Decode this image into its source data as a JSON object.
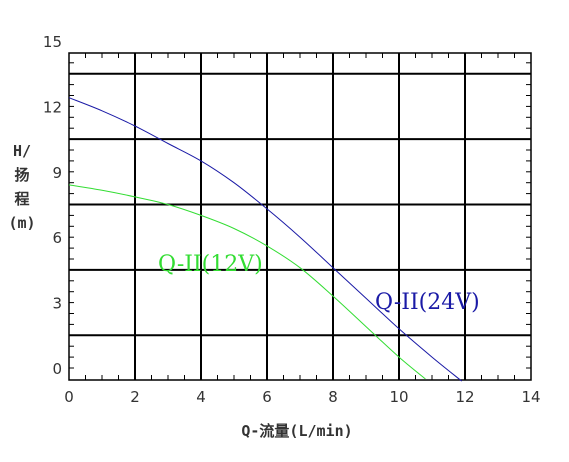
{
  "chart_data": {
    "type": "line",
    "title": "",
    "xlabel": "Q-流量(L/min)",
    "ylabel_lines": [
      "H/",
      "扬",
      "程",
      "(m)"
    ],
    "xlim": [
      0,
      14
    ],
    "ylim": [
      -0.5,
      15
    ],
    "x_ticks": [
      0,
      2,
      4,
      6,
      8,
      10,
      12,
      14
    ],
    "y_ticks": [
      0,
      3,
      6,
      9,
      12,
      15
    ],
    "grid": true,
    "series": [
      {
        "name": "Q-II(24V)",
        "color": "#1a1aa6",
        "x": [
          0,
          1,
          2,
          3,
          4,
          5,
          6,
          7,
          8,
          9,
          10,
          11,
          11.9
        ],
        "y": [
          12.4,
          11.8,
          11.1,
          10.3,
          9.5,
          8.5,
          7.3,
          6.0,
          4.6,
          3.2,
          1.8,
          0.5,
          -0.6
        ]
      },
      {
        "name": "Q-II(12V)",
        "color": "#33dd33",
        "x": [
          0,
          1,
          2,
          3,
          4,
          5,
          6,
          7,
          8,
          9,
          10,
          10.8
        ],
        "y": [
          8.4,
          8.15,
          7.85,
          7.5,
          7.0,
          6.4,
          5.6,
          4.6,
          3.3,
          1.9,
          0.5,
          -0.5
        ]
      }
    ]
  }
}
